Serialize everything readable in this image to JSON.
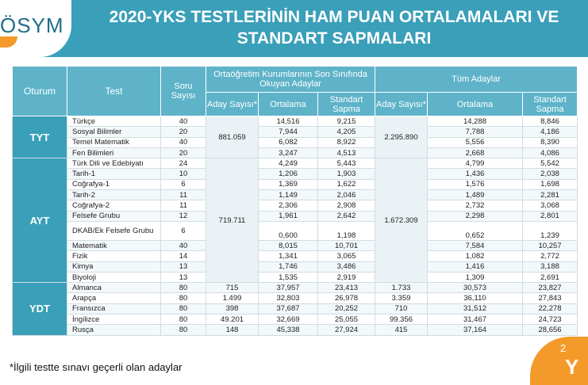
{
  "logo": {
    "text": "ÖSYM"
  },
  "title": {
    "line1": "2020-YKS TESTLERİNİN HAM PUAN ORTALAMALARI VE",
    "line2": "STANDART SAPMALARI"
  },
  "headers": {
    "oturum": "Oturum",
    "test": "Test",
    "soru": "Soru Sayısı",
    "group1": "Ortaöğretim Kurumlarının Son Sınıfında Okuyan Adaylar",
    "group2": "Tüm Adaylar",
    "aday": "Aday Sayısı*",
    "ortalama": "Ortalama",
    "standart": "Standart Sapma"
  },
  "sessions": {
    "tyt": "TYT",
    "ayt": "AYT",
    "ydt": "YDT"
  },
  "merged": {
    "tyt_aday1": "881.059",
    "tyt_aday2": "2.295.890",
    "ayt_aday1": "719.711",
    "ayt_aday2": "1.672.309"
  },
  "rows": [
    {
      "test": "Türkçe",
      "soru": "40",
      "ort1": "14,516",
      "ss1": "9,215",
      "ort2": "14,288",
      "ss2": "8,846"
    },
    {
      "test": "Sosyal Bilimler",
      "soru": "20",
      "ort1": "7,944",
      "ss1": "4,205",
      "ort2": "7,788",
      "ss2": "4,186"
    },
    {
      "test": "Temel Matematik",
      "soru": "40",
      "ort1": "6,082",
      "ss1": "8,922",
      "ort2": "5,556",
      "ss2": "8,390"
    },
    {
      "test": "Fen Bilimleri",
      "soru": "20",
      "ort1": "3,247",
      "ss1": "4,513",
      "ort2": "2,668",
      "ss2": "4,086"
    },
    {
      "test": "Türk Dili ve Edebiyatı",
      "soru": "24",
      "ort1": "4,249",
      "ss1": "5,443",
      "ort2": "4,799",
      "ss2": "5,542"
    },
    {
      "test": "Tarih-1",
      "soru": "10",
      "ort1": "1,206",
      "ss1": "1,903",
      "ort2": "1,436",
      "ss2": "2,038"
    },
    {
      "test": "Coğrafya-1",
      "soru": "6",
      "ort1": "1,369",
      "ss1": "1,622",
      "ort2": "1,576",
      "ss2": "1,698"
    },
    {
      "test": "Tarih-2",
      "soru": "11",
      "ort1": "1,149",
      "ss1": "2,046",
      "ort2": "1,489",
      "ss2": "2,281"
    },
    {
      "test": "Coğrafya-2",
      "soru": "11",
      "ort1": "2,306",
      "ss1": "2,908",
      "ort2": "2,732",
      "ss2": "3,068"
    },
    {
      "test": "Felsefe Grubu",
      "soru": "12",
      "ort1": "1,961",
      "ss1": "2,642",
      "ort2": "2,298",
      "ss2": "2,801"
    },
    {
      "test": "DKAB/Ek Felsefe Grubu",
      "soru": "6",
      "ort1": "0,600",
      "ss1": "1,198",
      "ort2": "0,652",
      "ss2": "1,239"
    },
    {
      "test": "Matematik",
      "soru": "40",
      "ort1": "8,015",
      "ss1": "10,701",
      "ort2": "7,584",
      "ss2": "10,257"
    },
    {
      "test": "Fizik",
      "soru": "14",
      "ort1": "1,341",
      "ss1": "3,065",
      "ort2": "1,082",
      "ss2": "2,772"
    },
    {
      "test": "Kimya",
      "soru": "13",
      "ort1": "1,746",
      "ss1": "3,486",
      "ort2": "1,416",
      "ss2": "3,188"
    },
    {
      "test": "Biyoloji",
      "soru": "13",
      "ort1": "1,535",
      "ss1": "2,919",
      "ort2": "1,309",
      "ss2": "2,691"
    },
    {
      "test": "Almanca",
      "soru": "80",
      "aday1": "715",
      "ort1": "37,957",
      "ss1": "23,413",
      "aday2": "1.733",
      "ort2": "30,573",
      "ss2": "23,827"
    },
    {
      "test": "Arapça",
      "soru": "80",
      "aday1": "1.499",
      "ort1": "32,803",
      "ss1": "26,978",
      "aday2": "3.359",
      "ort2": "36,110",
      "ss2": "27,843"
    },
    {
      "test": "Fransızca",
      "soru": "80",
      "aday1": "398",
      "ort1": "37,687",
      "ss1": "20,252",
      "aday2": "710",
      "ort2": "31,512",
      "ss2": "22,278"
    },
    {
      "test": "İngilizce",
      "soru": "80",
      "aday1": "49.201",
      "ort1": "32,669",
      "ss1": "25,055",
      "aday2": "99.356",
      "ort2": "31,467",
      "ss2": "24,723"
    },
    {
      "test": "Rusça",
      "soru": "80",
      "aday1": "148",
      "ort1": "45,338",
      "ss1": "27,924",
      "aday2": "415",
      "ort2": "37,164",
      "ss2": "28,656"
    }
  ],
  "footnote": "*İlgili testte sınavı geçerli olan adaylar",
  "corner": {
    "a": "2",
    "b": "Y"
  }
}
